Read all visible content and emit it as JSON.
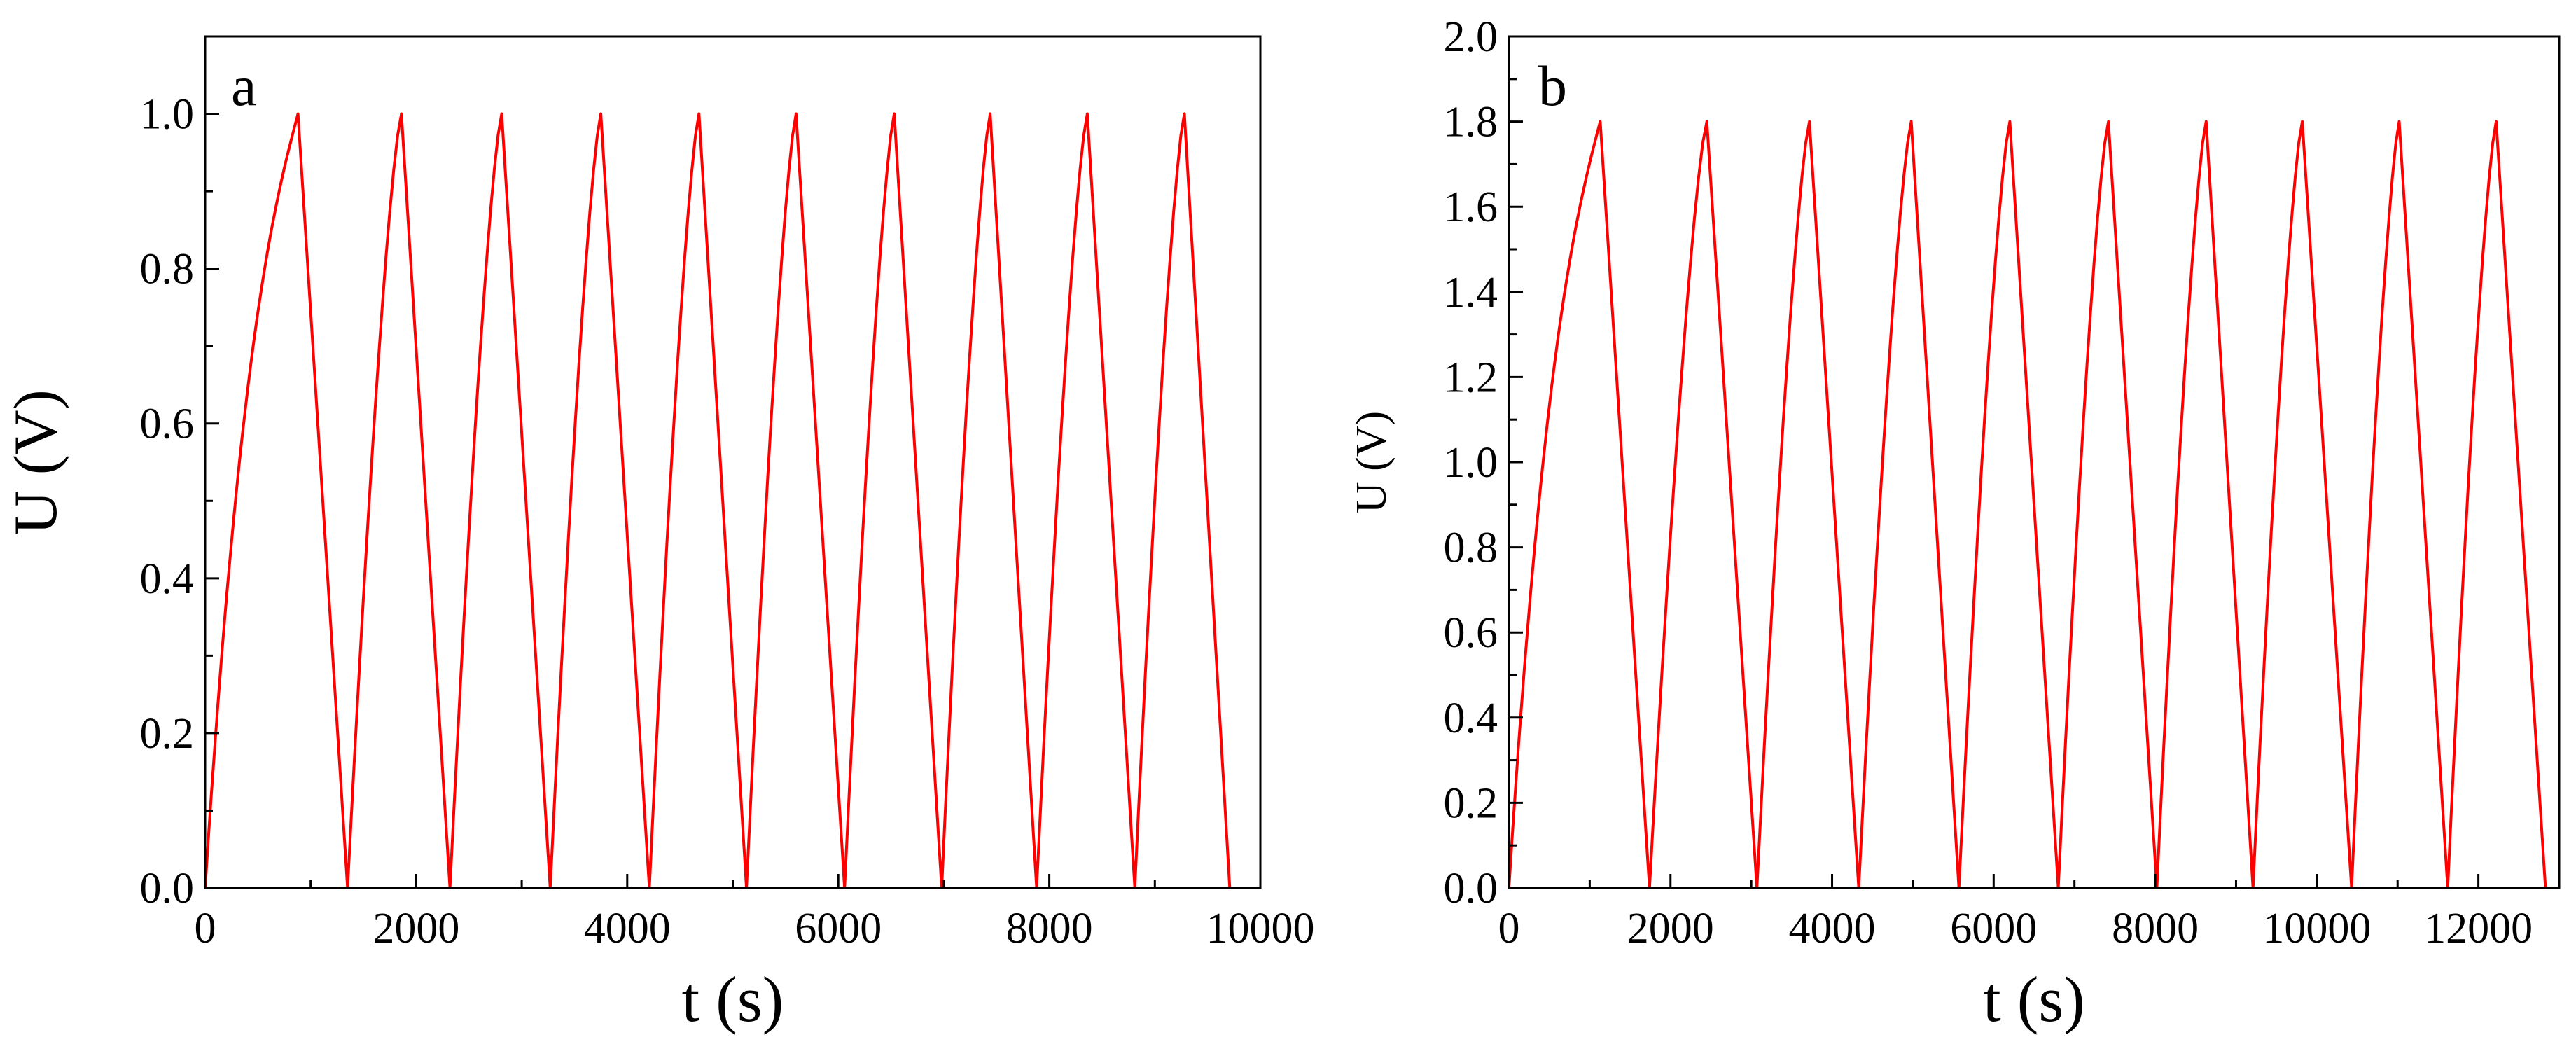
{
  "chart_data": [
    {
      "panel_label": "a",
      "type": "line",
      "xlabel": "t (s)",
      "ylabel": "U (V)",
      "xlim": [
        0,
        10000
      ],
      "ylim": [
        0,
        1.1
      ],
      "xticks": [
        0,
        2000,
        4000,
        6000,
        8000,
        10000
      ],
      "yticks": [
        0.0,
        0.2,
        0.4,
        0.6,
        0.8,
        1.0
      ],
      "xtick_labels": [
        "0",
        "2000",
        "4000",
        "6000",
        "8000",
        "10000"
      ],
      "ytick_labels": [
        "0.0",
        "0.2",
        "0.4",
        "0.6",
        "0.8",
        "1.0"
      ],
      "grid": false,
      "legend": "none",
      "line_color": "#ff0000",
      "series": [
        {
          "first_charge": {
            "start": [
              0,
              0
            ],
            "peak": [
              880,
              1.0
            ]
          },
          "peak_times": [
            880,
            1860,
            2810,
            3750,
            4680,
            5600,
            6530,
            7440,
            8360,
            9280
          ],
          "valley_times": [
            1350,
            2320,
            3270,
            4210,
            5130,
            6060,
            6980,
            7880,
            8810,
            9710
          ],
          "peak_value": 1.0,
          "valley_value": 0.0
        }
      ]
    },
    {
      "panel_label": "b",
      "type": "line",
      "xlabel": "t (s)",
      "ylabel": "U (V)",
      "xlim": [
        0,
        13000
      ],
      "ylim": [
        0,
        2.0
      ],
      "xticks": [
        0,
        2000,
        4000,
        6000,
        8000,
        10000,
        12000
      ],
      "yticks": [
        0.0,
        0.2,
        0.4,
        0.6,
        0.8,
        1.0,
        1.2,
        1.4,
        1.6,
        1.8,
        2.0
      ],
      "xtick_labels": [
        "0",
        "2000",
        "4000",
        "6000",
        "8000",
        "10000",
        "12000"
      ],
      "ytick_labels": [
        "0.0",
        "0.2",
        "0.4",
        "0.6",
        "0.8",
        "1.0",
        "1.2",
        "1.4",
        "1.6",
        "1.8",
        "2.0"
      ],
      "grid": false,
      "legend": "none",
      "line_color": "#ff0000",
      "series": [
        {
          "first_charge": {
            "start": [
              0,
              0
            ],
            "peak": [
              1130,
              1.8
            ]
          },
          "peak_times": [
            1130,
            2450,
            3720,
            4980,
            6200,
            7420,
            8630,
            9820,
            11020,
            12220
          ],
          "valley_times": [
            1740,
            3070,
            4330,
            5570,
            6800,
            8020,
            9210,
            10430,
            11620,
            12830
          ],
          "peak_value": 1.8,
          "valley_value": 0.0
        }
      ]
    }
  ]
}
